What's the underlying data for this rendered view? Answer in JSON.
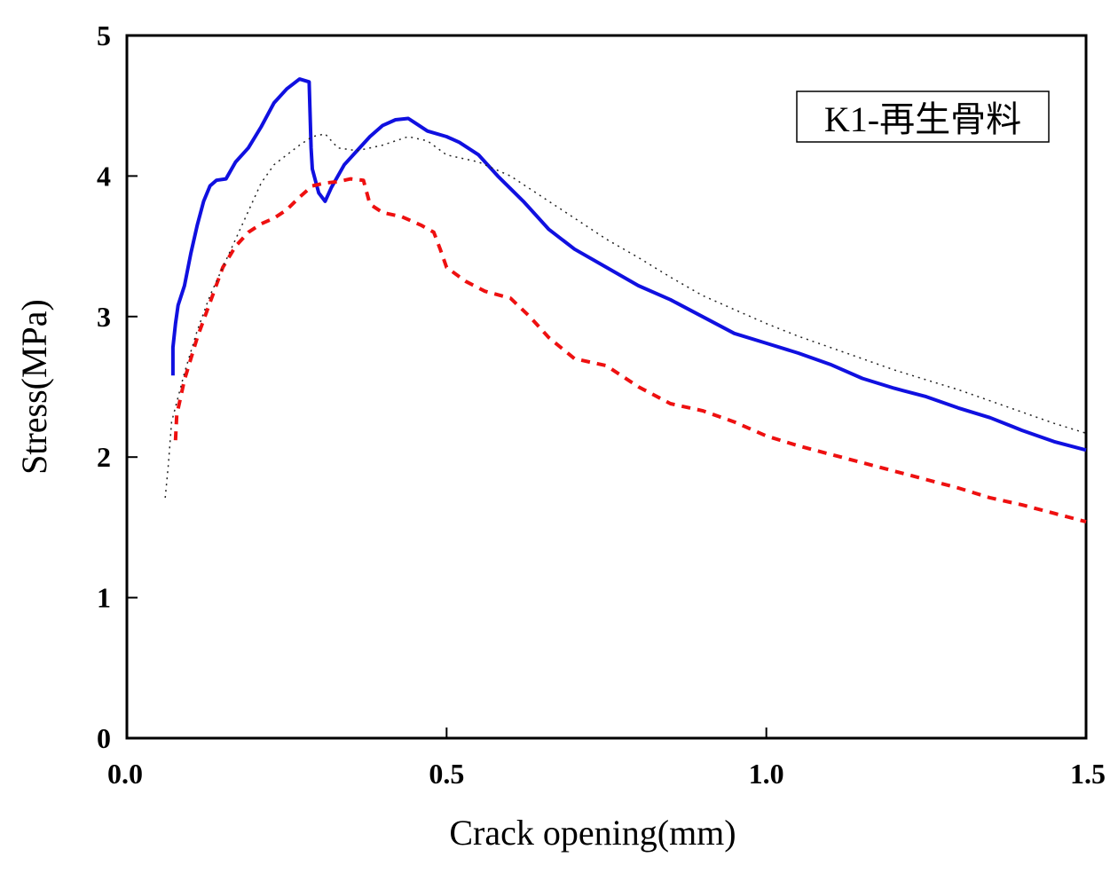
{
  "chart_data": {
    "type": "line",
    "title": "",
    "xlabel": "Crack opening(mm)",
    "ylabel": "Stress(MPa)",
    "xlim": [
      0,
      1.5
    ],
    "ylim": [
      0,
      5
    ],
    "x_ticks": [
      "0.0",
      "0.5",
      "1.0",
      "1.5"
    ],
    "y_ticks": [
      "0",
      "1",
      "2",
      "3",
      "4",
      "5"
    ],
    "legend_box": "K1-再生骨料",
    "legend_placement": "top-right",
    "grid": false,
    "series": [
      {
        "style": "solid",
        "color": "#1010e0",
        "points": [
          [
            0.072,
            2.58
          ],
          [
            0.072,
            2.78
          ],
          [
            0.076,
            2.95
          ],
          [
            0.08,
            3.08
          ],
          [
            0.09,
            3.22
          ],
          [
            0.1,
            3.45
          ],
          [
            0.11,
            3.65
          ],
          [
            0.12,
            3.82
          ],
          [
            0.13,
            3.93
          ],
          [
            0.14,
            3.97
          ],
          [
            0.155,
            3.98
          ],
          [
            0.17,
            4.1
          ],
          [
            0.19,
            4.2
          ],
          [
            0.21,
            4.35
          ],
          [
            0.23,
            4.52
          ],
          [
            0.25,
            4.62
          ],
          [
            0.27,
            4.69
          ],
          [
            0.285,
            4.67
          ],
          [
            0.288,
            4.2
          ],
          [
            0.29,
            4.05
          ],
          [
            0.3,
            3.88
          ],
          [
            0.31,
            3.82
          ],
          [
            0.32,
            3.92
          ],
          [
            0.34,
            4.08
          ],
          [
            0.36,
            4.18
          ],
          [
            0.38,
            4.28
          ],
          [
            0.4,
            4.36
          ],
          [
            0.42,
            4.4
          ],
          [
            0.44,
            4.41
          ],
          [
            0.45,
            4.38
          ],
          [
            0.47,
            4.32
          ],
          [
            0.5,
            4.28
          ],
          [
            0.52,
            4.24
          ],
          [
            0.55,
            4.15
          ],
          [
            0.58,
            4.0
          ],
          [
            0.62,
            3.82
          ],
          [
            0.66,
            3.62
          ],
          [
            0.7,
            3.48
          ],
          [
            0.75,
            3.35
          ],
          [
            0.8,
            3.22
          ],
          [
            0.85,
            3.12
          ],
          [
            0.9,
            3.0
          ],
          [
            0.95,
            2.88
          ],
          [
            1.0,
            2.81
          ],
          [
            1.05,
            2.74
          ],
          [
            1.1,
            2.66
          ],
          [
            1.15,
            2.56
          ],
          [
            1.2,
            2.49
          ],
          [
            1.25,
            2.43
          ],
          [
            1.3,
            2.35
          ],
          [
            1.35,
            2.28
          ],
          [
            1.4,
            2.19
          ],
          [
            1.45,
            2.11
          ],
          [
            1.5,
            2.05
          ]
        ]
      },
      {
        "style": "dashed",
        "color": "#ee1010",
        "points": [
          [
            0.076,
            2.12
          ],
          [
            0.078,
            2.3
          ],
          [
            0.09,
            2.55
          ],
          [
            0.11,
            2.85
          ],
          [
            0.13,
            3.1
          ],
          [
            0.15,
            3.35
          ],
          [
            0.17,
            3.5
          ],
          [
            0.19,
            3.6
          ],
          [
            0.21,
            3.66
          ],
          [
            0.23,
            3.7
          ],
          [
            0.25,
            3.76
          ],
          [
            0.27,
            3.85
          ],
          [
            0.29,
            3.93
          ],
          [
            0.31,
            3.95
          ],
          [
            0.33,
            3.96
          ],
          [
            0.35,
            3.98
          ],
          [
            0.37,
            3.97
          ],
          [
            0.38,
            3.8
          ],
          [
            0.4,
            3.74
          ],
          [
            0.43,
            3.71
          ],
          [
            0.46,
            3.65
          ],
          [
            0.48,
            3.6
          ],
          [
            0.49,
            3.48
          ],
          [
            0.5,
            3.35
          ],
          [
            0.53,
            3.25
          ],
          [
            0.56,
            3.18
          ],
          [
            0.6,
            3.13
          ],
          [
            0.63,
            3.0
          ],
          [
            0.66,
            2.85
          ],
          [
            0.7,
            2.7
          ],
          [
            0.75,
            2.65
          ],
          [
            0.8,
            2.5
          ],
          [
            0.85,
            2.38
          ],
          [
            0.9,
            2.33
          ],
          [
            0.95,
            2.25
          ],
          [
            1.0,
            2.15
          ],
          [
            1.05,
            2.08
          ],
          [
            1.1,
            2.02
          ],
          [
            1.15,
            1.96
          ],
          [
            1.2,
            1.9
          ],
          [
            1.25,
            1.84
          ],
          [
            1.3,
            1.78
          ],
          [
            1.35,
            1.71
          ],
          [
            1.4,
            1.66
          ],
          [
            1.45,
            1.6
          ],
          [
            1.5,
            1.54
          ]
        ]
      },
      {
        "style": "dotted",
        "color": "#222222",
        "points": [
          [
            0.06,
            1.71
          ],
          [
            0.065,
            1.95
          ],
          [
            0.07,
            2.25
          ],
          [
            0.09,
            2.6
          ],
          [
            0.11,
            2.9
          ],
          [
            0.13,
            3.15
          ],
          [
            0.15,
            3.35
          ],
          [
            0.17,
            3.55
          ],
          [
            0.19,
            3.75
          ],
          [
            0.21,
            3.95
          ],
          [
            0.23,
            4.08
          ],
          [
            0.25,
            4.15
          ],
          [
            0.27,
            4.22
          ],
          [
            0.29,
            4.28
          ],
          [
            0.31,
            4.3
          ],
          [
            0.33,
            4.2
          ],
          [
            0.36,
            4.18
          ],
          [
            0.4,
            4.22
          ],
          [
            0.44,
            4.28
          ],
          [
            0.47,
            4.25
          ],
          [
            0.5,
            4.15
          ],
          [
            0.55,
            4.1
          ],
          [
            0.6,
            4.0
          ],
          [
            0.65,
            3.85
          ],
          [
            0.7,
            3.7
          ],
          [
            0.75,
            3.55
          ],
          [
            0.8,
            3.42
          ],
          [
            0.85,
            3.28
          ],
          [
            0.9,
            3.15
          ],
          [
            0.95,
            3.05
          ],
          [
            1.0,
            2.95
          ],
          [
            1.05,
            2.86
          ],
          [
            1.1,
            2.78
          ],
          [
            1.15,
            2.7
          ],
          [
            1.2,
            2.62
          ],
          [
            1.25,
            2.55
          ],
          [
            1.3,
            2.48
          ],
          [
            1.35,
            2.4
          ],
          [
            1.4,
            2.32
          ],
          [
            1.45,
            2.24
          ],
          [
            1.5,
            2.17
          ]
        ]
      }
    ]
  }
}
